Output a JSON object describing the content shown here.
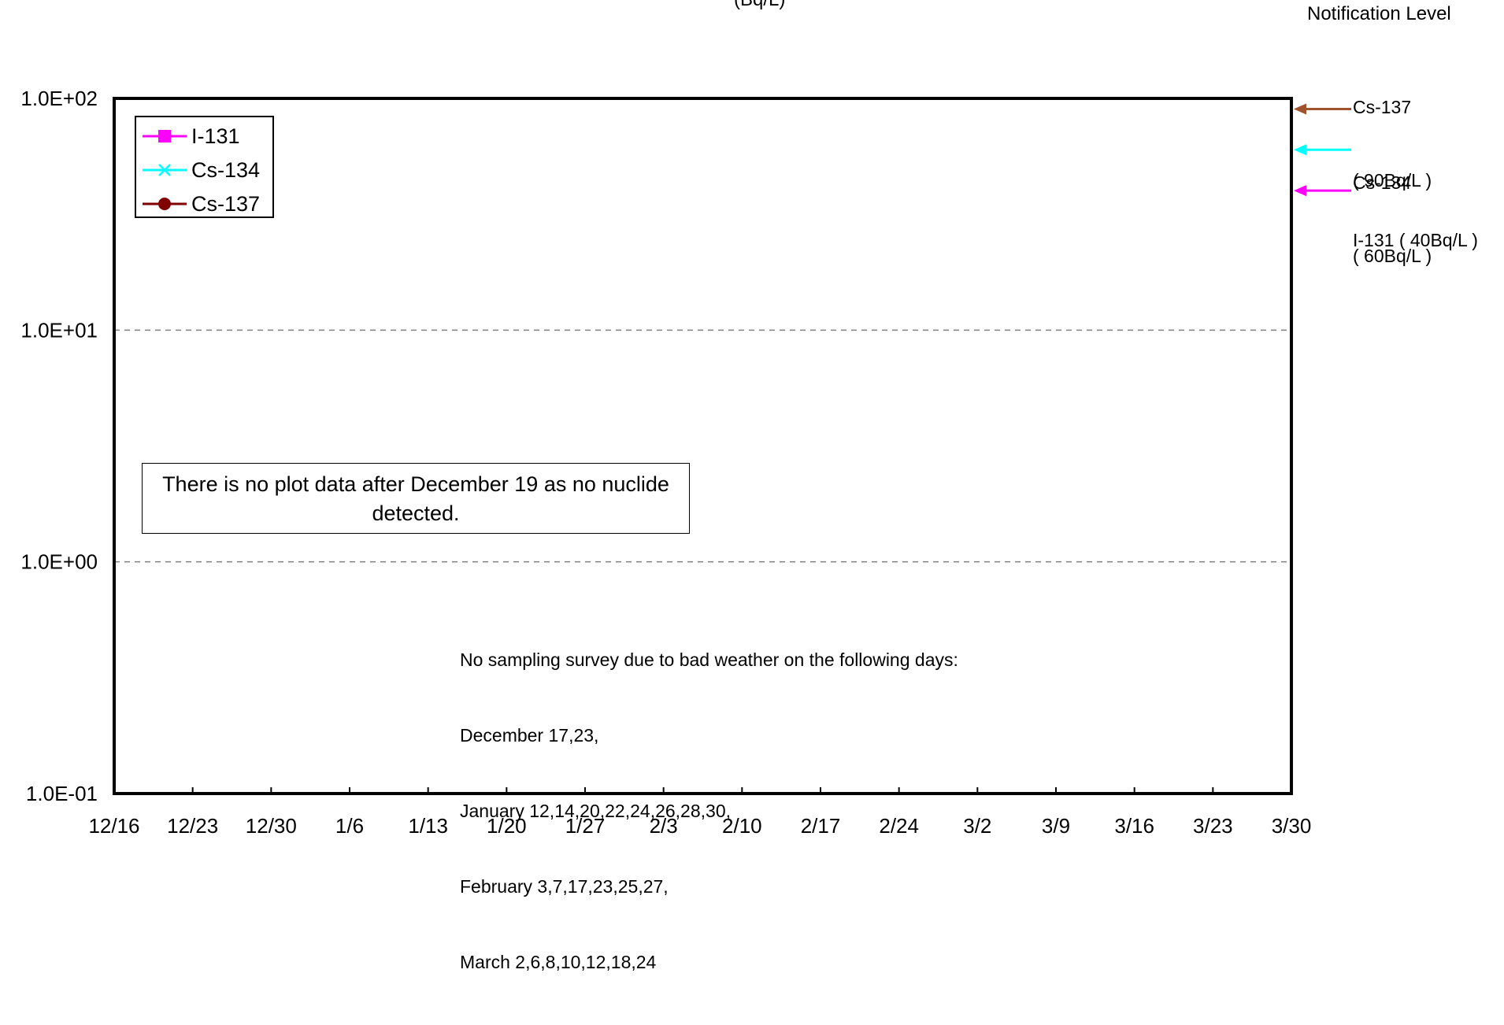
{
  "chart_data": {
    "type": "line",
    "unit_label": "(Bq/L)",
    "x_tick_labels": [
      "12/16",
      "12/23",
      "12/30",
      "1/6",
      "1/13",
      "1/20",
      "1/27",
      "2/3",
      "2/10",
      "2/17",
      "2/24",
      "3/2",
      "3/9",
      "3/16",
      "3/23",
      "3/30"
    ],
    "y_tick_labels": [
      "1.0E+02",
      "1.0E+01",
      "1.0E+00",
      "1.0E-01"
    ],
    "y_scale": "log",
    "ylim": [
      0.1,
      100
    ],
    "grid": "horizontal dashed",
    "legend_position": "top-left",
    "series": [
      {
        "name": "I-131",
        "color": "#ff00ff",
        "marker": "square",
        "values": []
      },
      {
        "name": "Cs-134",
        "color": "#00ffff",
        "marker": "x",
        "values": []
      },
      {
        "name": "Cs-137",
        "color": "#800000",
        "marker": "circle",
        "values": []
      }
    ],
    "notification": {
      "title": "Notification Level",
      "levels": [
        {
          "nuclide": "Cs-137",
          "value": 90,
          "color": "#a0522d",
          "label_line1": "Cs-137",
          "label_line2": "( 90Bq/L )"
        },
        {
          "nuclide": "Cs-134",
          "value": 60,
          "color": "#00ffff",
          "label_line1": "Cs-134",
          "label_line2": "( 60Bq/L )"
        },
        {
          "nuclide": "I-131",
          "value": 40,
          "color": "#ff00ff",
          "label_line1": "I-131 ( 40Bq/L )",
          "label_line2": ""
        }
      ]
    },
    "annotations": {
      "no_data_note": "There is no plot data after December 19 as no nuclide detected.",
      "sampling_note_lines": [
        "No sampling survey due to bad weather on the following days:",
        "December 17,23,",
        "January 12,14,20,22,24,26,28,30,",
        "February 3,7,17,23,25,27,",
        "March 2,6,8,10,12,18,24"
      ]
    }
  },
  "colors": {
    "axis": "#000000",
    "grid": "#808080"
  }
}
